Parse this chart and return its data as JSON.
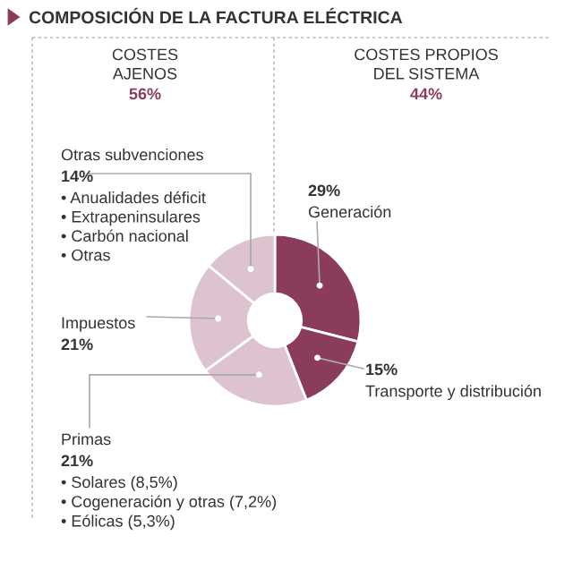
{
  "chart_data": {
    "type": "donut",
    "title": "COMPOSICIÓN DE LA FACTURA ELÉCTRICA",
    "categories": [
      "Generación",
      "Transporte y distribución",
      "Primas",
      "Impuestos",
      "Otras subvenciones"
    ],
    "values": [
      29,
      15,
      21,
      21,
      14
    ],
    "value_labels": [
      "29%",
      "15%",
      "21%",
      "21%",
      "14%"
    ],
    "colors": [
      "#8b3c5c",
      "#8b3c5c",
      "#dcc3cf",
      "#dcc3cf",
      "#dcc3cf"
    ],
    "annotations": [
      "COSTES\nAJENOS",
      "56%",
      "COSTES PROPIOS\nDEL SISTEMA",
      "44%",
      "• Solares (8,5%)\n• Cogeneración y otras (7,2%)\n• Eólicas (5,3%)",
      "• Anualidades déficit\n• Extrapeninsulares\n• Carbón nacional\n• Otras"
    ]
  }
}
